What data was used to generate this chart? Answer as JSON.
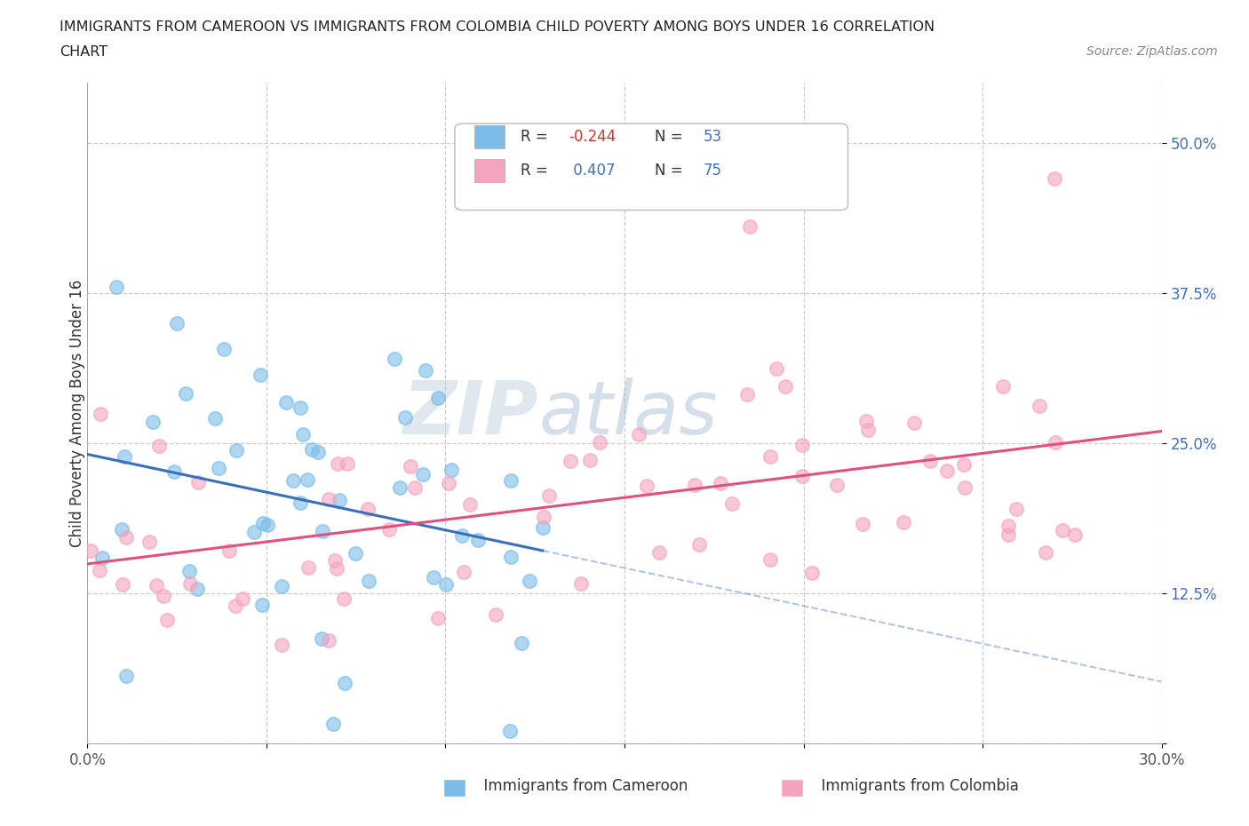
{
  "title_line1": "IMMIGRANTS FROM CAMEROON VS IMMIGRANTS FROM COLOMBIA CHILD POVERTY AMONG BOYS UNDER 16 CORRELATION",
  "title_line2": "CHART",
  "source": "Source: ZipAtlas.com",
  "ylabel": "Child Poverty Among Boys Under 16",
  "xlim": [
    0.0,
    0.3
  ],
  "ylim": [
    0.0,
    0.55
  ],
  "color_cameroon": "#7bbde8",
  "color_colombia": "#f4a4be",
  "trendline_cameroon": "#3a6fba",
  "trendline_colombia": "#e05080",
  "R_cameroon": -0.244,
  "N_cameroon": 53,
  "R_colombia": 0.407,
  "N_colombia": 75,
  "watermark_ZIP": "ZIP",
  "watermark_atlas": "atlas",
  "legend_R_label_color": "#333333",
  "legend_R_neg_color": "#e03030",
  "legend_R_pos_color": "#4070c0",
  "legend_N_color": "#4070c0"
}
